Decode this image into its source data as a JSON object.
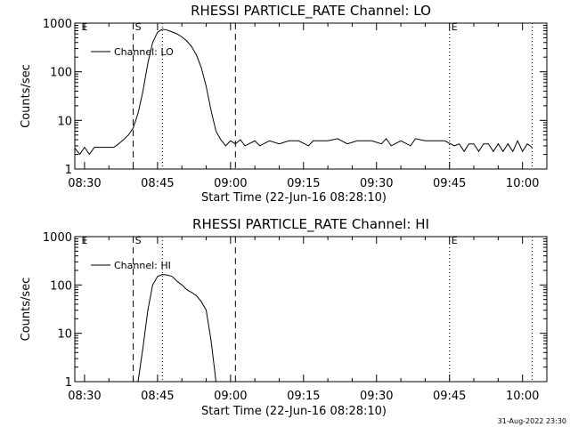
{
  "page": {
    "timestamp": "31-Aug-2022 23:30"
  },
  "chart_data": [
    {
      "type": "line",
      "title": "RHESSI PARTICLE_RATE Channel: LO",
      "xlabel": "Start Time (22-Jun-16 08:28:10)",
      "ylabel": "Counts/sec",
      "y_scale": "log",
      "ylim": [
        1,
        1000
      ],
      "xlim": [
        "08:28",
        "10:05"
      ],
      "x_ticks": [
        "08:30",
        "08:45",
        "09:00",
        "09:15",
        "09:30",
        "09:45",
        "10:00"
      ],
      "y_ticks": [
        "1",
        "10",
        "100",
        "1000"
      ],
      "legend": {
        "label": "Channel: LO",
        "position": "top-left"
      },
      "markers": [
        {
          "time": "08:29",
          "label": "E",
          "style": "none"
        },
        {
          "time": "08:40",
          "label": "S",
          "style": "dashed"
        },
        {
          "time": "08:46",
          "label": "",
          "style": "dotted"
        },
        {
          "time": "09:01",
          "label": "",
          "style": "dashed"
        },
        {
          "time": "09:45",
          "label": "E",
          "style": "dotted"
        },
        {
          "time": "10:02",
          "label": "",
          "style": "dotted"
        }
      ],
      "series": [
        {
          "name": "Channel: LO",
          "points": [
            [
              "08:28",
              2.7
            ],
            [
              "08:29",
              2.0
            ],
            [
              "08:30",
              2.8
            ],
            [
              "08:31",
              2.0
            ],
            [
              "08:32",
              2.8
            ],
            [
              "08:33",
              2.8
            ],
            [
              "08:34",
              2.8
            ],
            [
              "08:35",
              2.8
            ],
            [
              "08:36",
              2.8
            ],
            [
              "08:37",
              3.3
            ],
            [
              "08:38",
              4.0
            ],
            [
              "08:39",
              5.0
            ],
            [
              "08:40",
              7.0
            ],
            [
              "08:41",
              14
            ],
            [
              "08:42",
              40
            ],
            [
              "08:43",
              150
            ],
            [
              "08:44",
              400
            ],
            [
              "08:45",
              650
            ],
            [
              "08:46",
              750
            ],
            [
              "08:47",
              720
            ],
            [
              "08:48",
              660
            ],
            [
              "08:49",
              600
            ],
            [
              "08:50",
              520
            ],
            [
              "08:51",
              430
            ],
            [
              "08:52",
              330
            ],
            [
              "08:53",
              220
            ],
            [
              "08:54",
              120
            ],
            [
              "08:55",
              50
            ],
            [
              "08:56",
              16
            ],
            [
              "08:57",
              6
            ],
            [
              "08:58",
              4.0
            ],
            [
              "08:59",
              3.0
            ],
            [
              "09:00",
              3.8
            ],
            [
              "09:01",
              3.3
            ],
            [
              "09:02",
              4.0
            ],
            [
              "09:03",
              3.0
            ],
            [
              "09:05",
              3.8
            ],
            [
              "09:06",
              3.0
            ],
            [
              "09:08",
              3.8
            ],
            [
              "09:10",
              3.3
            ],
            [
              "09:12",
              3.8
            ],
            [
              "09:14",
              3.8
            ],
            [
              "09:16",
              3.0
            ],
            [
              "09:17",
              3.8
            ],
            [
              "09:20",
              3.8
            ],
            [
              "09:22",
              4.2
            ],
            [
              "09:24",
              3.3
            ],
            [
              "09:26",
              3.8
            ],
            [
              "09:29",
              3.8
            ],
            [
              "09:31",
              3.3
            ],
            [
              "09:32",
              4.2
            ],
            [
              "09:33",
              3.0
            ],
            [
              "09:35",
              3.8
            ],
            [
              "09:37",
              3.0
            ],
            [
              "09:38",
              4.2
            ],
            [
              "09:40",
              3.8
            ],
            [
              "09:42",
              3.8
            ],
            [
              "09:44",
              3.8
            ],
            [
              "09:46",
              3.0
            ],
            [
              "09:47",
              3.3
            ],
            [
              "09:48",
              2.3
            ],
            [
              "09:49",
              3.3
            ],
            [
              "09:50",
              3.3
            ],
            [
              "09:51",
              2.3
            ],
            [
              "09:52",
              3.3
            ],
            [
              "09:53",
              3.3
            ],
            [
              "09:54",
              2.3
            ],
            [
              "09:55",
              3.3
            ],
            [
              "09:56",
              2.3
            ],
            [
              "09:57",
              3.3
            ],
            [
              "09:58",
              2.3
            ],
            [
              "09:59",
              3.8
            ],
            [
              "10:00",
              2.3
            ],
            [
              "10:01",
              3.3
            ],
            [
              "10:02",
              2.8
            ]
          ]
        }
      ]
    },
    {
      "type": "line",
      "title": "RHESSI PARTICLE_RATE Channel: HI",
      "xlabel": "Start Time (22-Jun-16 08:28:10)",
      "ylabel": "Counts/sec",
      "y_scale": "log",
      "ylim": [
        1,
        1000
      ],
      "xlim": [
        "08:28",
        "10:05"
      ],
      "x_ticks": [
        "08:30",
        "08:45",
        "09:00",
        "09:15",
        "09:30",
        "09:45",
        "10:00"
      ],
      "y_ticks": [
        "1",
        "10",
        "100",
        "1000"
      ],
      "legend": {
        "label": "Channel: HI",
        "position": "top-left"
      },
      "markers": [
        {
          "time": "08:29",
          "label": "E",
          "style": "none"
        },
        {
          "time": "08:40",
          "label": "S",
          "style": "dashed"
        },
        {
          "time": "08:46",
          "label": "",
          "style": "dotted"
        },
        {
          "time": "09:01",
          "label": "",
          "style": "dashed"
        },
        {
          "time": "09:45",
          "label": "E",
          "style": "dotted"
        },
        {
          "time": "10:02",
          "label": "",
          "style": "dotted"
        }
      ],
      "series": [
        {
          "name": "Channel: HI",
          "points": [
            [
              "08:41",
              1.0
            ],
            [
              "08:42",
              5
            ],
            [
              "08:43",
              30
            ],
            [
              "08:44",
              100
            ],
            [
              "08:45",
              150
            ],
            [
              "08:46",
              165
            ],
            [
              "08:47",
              160
            ],
            [
              "08:48",
              150
            ],
            [
              "08:49",
              120
            ],
            [
              "08:50",
              100
            ],
            [
              "08:51",
              80
            ],
            [
              "08:52",
              70
            ],
            [
              "08:53",
              60
            ],
            [
              "08:54",
              45
            ],
            [
              "08:55",
              30
            ],
            [
              "08:56",
              7
            ],
            [
              "08:57",
              1.0
            ]
          ]
        }
      ]
    }
  ]
}
